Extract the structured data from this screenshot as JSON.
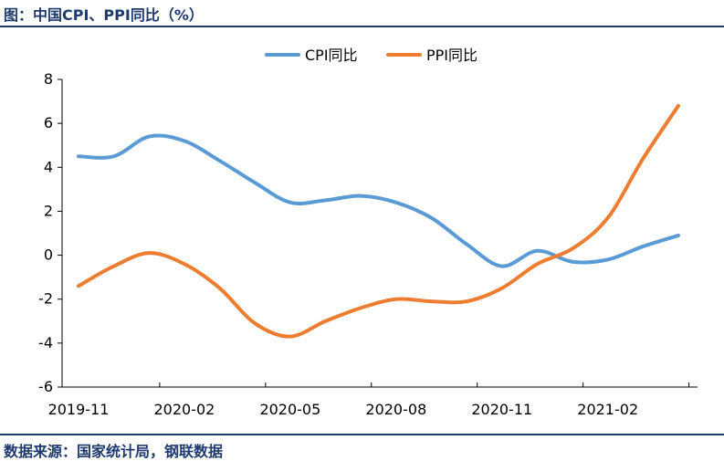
{
  "header": {
    "title": "图：中国CPI、PPI同比（%）"
  },
  "footer": {
    "source": "数据来源：国家统计局，钢联数据"
  },
  "chart_data": {
    "type": "line",
    "categories": [
      "2019-11",
      "2019-12",
      "2020-01",
      "2020-02",
      "2020-03",
      "2020-04",
      "2020-05",
      "2020-06",
      "2020-07",
      "2020-08",
      "2020-09",
      "2020-10",
      "2020-11",
      "2020-12",
      "2021-01",
      "2021-02",
      "2021-03",
      "2021-04"
    ],
    "x_tick_labels": [
      "2019-11",
      "2020-02",
      "2020-05",
      "2020-08",
      "2020-11",
      "2021-02"
    ],
    "y_ticks": [
      8,
      6,
      4,
      2,
      0,
      -2,
      -4,
      -6
    ],
    "ylim": [
      -6,
      8
    ],
    "series": [
      {
        "name": "CPI同比",
        "color": "#5b9bd5",
        "values": [
          4.5,
          4.5,
          5.4,
          5.2,
          4.3,
          3.3,
          2.4,
          2.5,
          2.7,
          2.4,
          1.7,
          0.5,
          -0.5,
          0.2,
          -0.3,
          -0.2,
          0.4,
          0.9
        ]
      },
      {
        "name": "PPI同比",
        "color": "#ed7d31",
        "values": [
          -1.4,
          -0.5,
          0.1,
          -0.4,
          -1.5,
          -3.1,
          -3.7,
          -3.0,
          -2.4,
          -2.0,
          -2.1,
          -2.1,
          -1.5,
          -0.4,
          0.3,
          1.7,
          4.4,
          6.8
        ]
      }
    ],
    "legend_position": "top-center",
    "grid": false
  }
}
